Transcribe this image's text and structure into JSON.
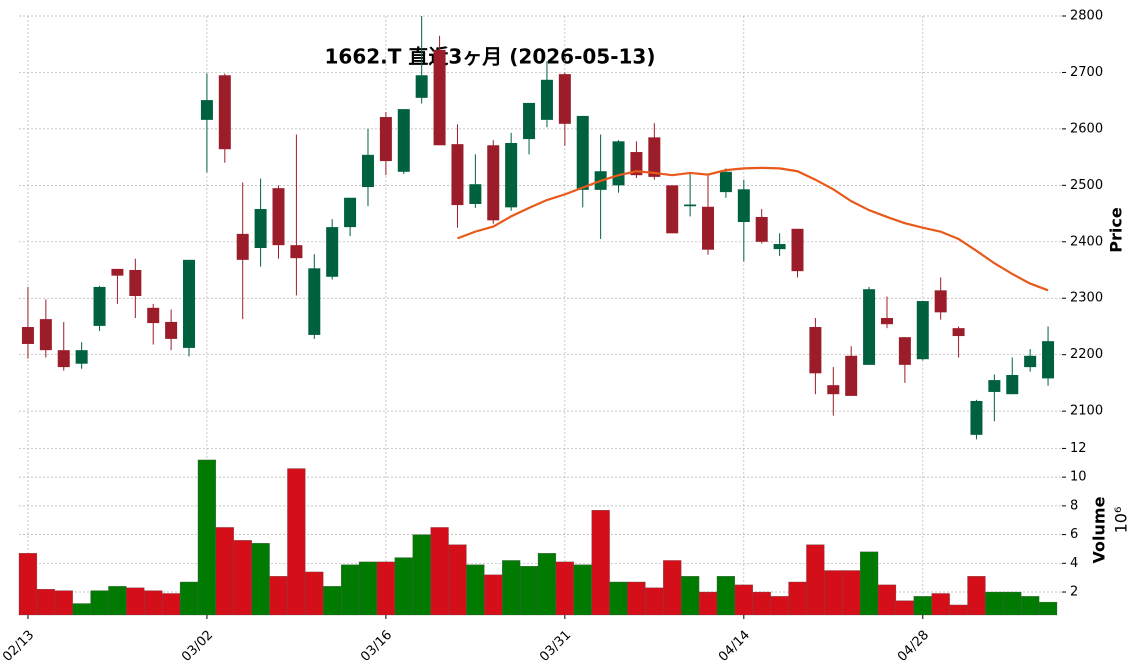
{
  "chart_data": [
    {
      "type": "candlestick",
      "title": "1662.T 直近3ヶ月 (2026-05-13)",
      "ylabel": "Price",
      "categories": [
        "02/13",
        null,
        null,
        null,
        null,
        null,
        null,
        null,
        null,
        null,
        "03/02",
        null,
        null,
        null,
        null,
        null,
        null,
        null,
        null,
        null,
        "03/16",
        null,
        null,
        null,
        null,
        null,
        null,
        null,
        null,
        null,
        "03/31",
        null,
        null,
        null,
        null,
        null,
        null,
        null,
        null,
        null,
        "04/14",
        null,
        null,
        null,
        null,
        null,
        null,
        null,
        null,
        null,
        "04/28",
        null,
        null,
        null,
        null,
        null,
        null,
        null
      ],
      "open": [
        2249,
        2263,
        2208,
        2184,
        2251,
        2352,
        2350,
        2283,
        2258,
        2212,
        2616,
        2695,
        2414,
        2389,
        2495,
        2394,
        2235,
        2338,
        2426,
        2497,
        2621,
        2524,
        2655,
        2740,
        2573,
        2467,
        2571,
        2461,
        2582,
        2616,
        2697,
        2492,
        2492,
        2500,
        2559,
        2585,
        2500,
        2463,
        2462,
        2488,
        2435,
        2444,
        2387,
        2423,
        2249,
        2146,
        2198,
        2182,
        2265,
        2231,
        2192,
        2314,
        2247,
        2058,
        2134,
        2130,
        2178,
        2158
      ],
      "high": [
        2320,
        2298,
        2258,
        2222,
        2322,
        2352,
        2370,
        2290,
        2280,
        2368,
        2698,
        2698,
        2505,
        2512,
        2500,
        2590,
        2378,
        2440,
        2478,
        2600,
        2630,
        2635,
        2800,
        2765,
        2608,
        2555,
        2580,
        2593,
        2646,
        2720,
        2700,
        2623,
        2590,
        2580,
        2578,
        2610,
        2500,
        2520,
        2520,
        2530,
        2510,
        2458,
        2415,
        2423,
        2265,
        2178,
        2215,
        2320,
        2303,
        2231,
        2295,
        2337,
        2250,
        2120,
        2165,
        2195,
        2210,
        2250
      ],
      "low": [
        2193,
        2195,
        2172,
        2175,
        2242,
        2290,
        2265,
        2218,
        2208,
        2197,
        2523,
        2540,
        2263,
        2356,
        2370,
        2305,
        2228,
        2333,
        2410,
        2463,
        2518,
        2520,
        2645,
        2571,
        2425,
        2460,
        2432,
        2455,
        2555,
        2603,
        2570,
        2461,
        2405,
        2487,
        2513,
        2510,
        2415,
        2445,
        2377,
        2478,
        2365,
        2397,
        2375,
        2337,
        2130,
        2092,
        2127,
        2182,
        2247,
        2150,
        2190,
        2262,
        2195,
        2050,
        2082,
        2130,
        2170,
        2145
      ],
      "close": [
        2219,
        2208,
        2178,
        2208,
        2320,
        2340,
        2304,
        2256,
        2228,
        2368,
        2651,
        2564,
        2368,
        2458,
        2394,
        2371,
        2353,
        2426,
        2478,
        2554,
        2543,
        2635,
        2695,
        2571,
        2465,
        2502,
        2438,
        2575,
        2646,
        2687,
        2609,
        2623,
        2525,
        2578,
        2518,
        2515,
        2415,
        2466,
        2386,
        2524,
        2493,
        2400,
        2396,
        2348,
        2167,
        2130,
        2127,
        2316,
        2254,
        2182,
        2295,
        2275,
        2233,
        2118,
        2155,
        2164,
        2198,
        2224
      ],
      "up_color": "#00613f",
      "down_color": "#9b1d2a",
      "ma": {
        "color": "#e8591a",
        "values": [
          null,
          null,
          null,
          null,
          null,
          null,
          null,
          null,
          null,
          null,
          null,
          null,
          null,
          null,
          null,
          null,
          null,
          null,
          null,
          null,
          null,
          null,
          null,
          null,
          2406,
          2418,
          2427,
          2445,
          2460,
          2474,
          2484,
          2496,
          2508,
          2518,
          2525,
          2522,
          2518,
          2522,
          2519,
          2527,
          2530,
          2531,
          2530,
          2525,
          2510,
          2493,
          2472,
          2456,
          2444,
          2433,
          2425,
          2418,
          2405,
          2384,
          2362,
          2343,
          2326,
          2314
        ]
      },
      "ylim": [
        2040,
        2800
      ],
      "yticks": [
        2100,
        2200,
        2300,
        2400,
        2500,
        2600,
        2700,
        2800
      ],
      "grid": true
    },
    {
      "type": "bar",
      "ylabel": "Volume",
      "scale": "10⁶",
      "values": [
        4.7,
        2.2,
        2.1,
        1.2,
        2.1,
        2.4,
        2.3,
        2.1,
        1.9,
        2.7,
        11.2,
        6.5,
        5.6,
        5.4,
        3.1,
        10.6,
        3.4,
        2.4,
        3.9,
        4.1,
        4.1,
        4.4,
        6.0,
        6.5,
        5.3,
        3.9,
        3.2,
        4.2,
        3.8,
        4.7,
        4.1,
        3.9,
        7.7,
        2.7,
        2.7,
        2.3,
        4.2,
        3.1,
        2.0,
        3.1,
        2.5,
        2.0,
        1.7,
        2.7,
        5.3,
        3.5,
        3.5,
        4.8,
        2.5,
        1.4,
        1.7,
        1.9,
        1.1,
        3.1,
        2.0,
        2.0,
        1.7,
        1.3
      ],
      "colors": [
        "#d40f1a",
        "#d40f1a",
        "#d40f1a",
        "#007a00",
        "#007a00",
        "#007a00",
        "#d40f1a",
        "#d40f1a",
        "#d40f1a",
        "#007a00",
        "#007a00",
        "#d40f1a",
        "#d40f1a",
        "#007a00",
        "#d40f1a",
        "#d40f1a",
        "#d40f1a",
        "#007a00",
        "#007a00",
        "#007a00",
        "#d40f1a",
        "#007a00",
        "#007a00",
        "#d40f1a",
        "#d40f1a",
        "#007a00",
        "#d40f1a",
        "#007a00",
        "#007a00",
        "#007a00",
        "#d40f1a",
        "#007a00",
        "#d40f1a",
        "#007a00",
        "#d40f1a",
        "#d40f1a",
        "#d40f1a",
        "#007a00",
        "#d40f1a",
        "#007a00",
        "#d40f1a",
        "#d40f1a",
        "#d40f1a",
        "#d40f1a",
        "#d40f1a",
        "#d40f1a",
        "#d40f1a",
        "#007a00",
        "#d40f1a",
        "#d40f1a",
        "#007a00",
        "#d40f1a",
        "#d40f1a",
        "#d40f1a",
        "#007a00",
        "#007a00",
        "#007a00",
        "#007a00"
      ],
      "ylim": [
        0.4,
        12.1
      ],
      "yticks": [
        2,
        4,
        6,
        8,
        10,
        12
      ],
      "grid": true
    }
  ]
}
